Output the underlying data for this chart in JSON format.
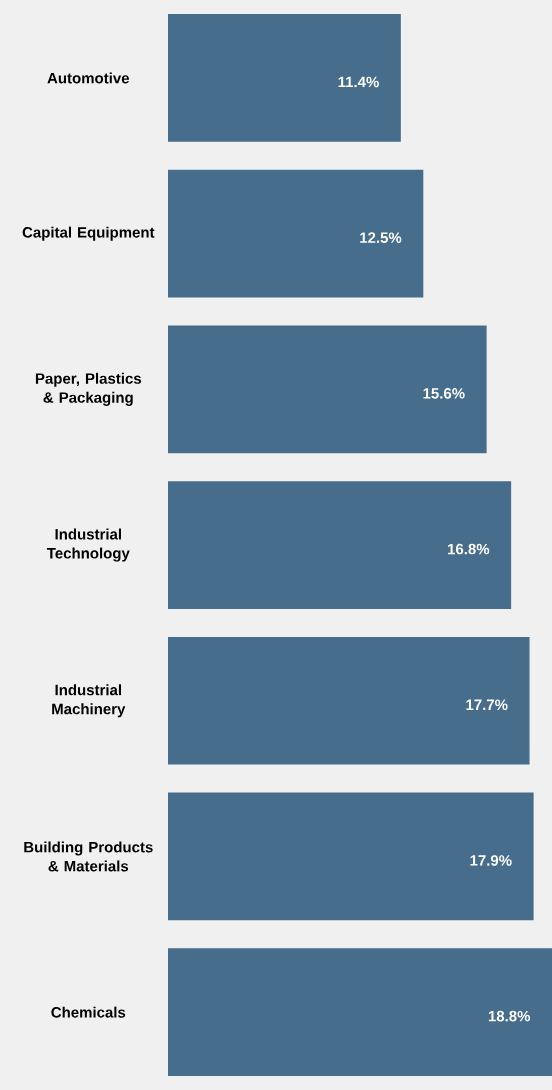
{
  "chart_data": {
    "type": "bar",
    "orientation": "horizontal",
    "categories": [
      "Automotive",
      "Capital Equipment",
      "Paper, Plastics & Packaging",
      "Industrial Technology",
      "Industrial Machinery",
      "Building Products & Materials",
      "Chemicals"
    ],
    "values": [
      11.4,
      12.5,
      15.6,
      16.8,
      17.7,
      17.9,
      18.8
    ],
    "value_labels": [
      "11.4%",
      "12.5%",
      "15.6%",
      "16.8%",
      "17.7%",
      "17.9%",
      "18.8%"
    ],
    "color": "#466d8c"
  }
}
